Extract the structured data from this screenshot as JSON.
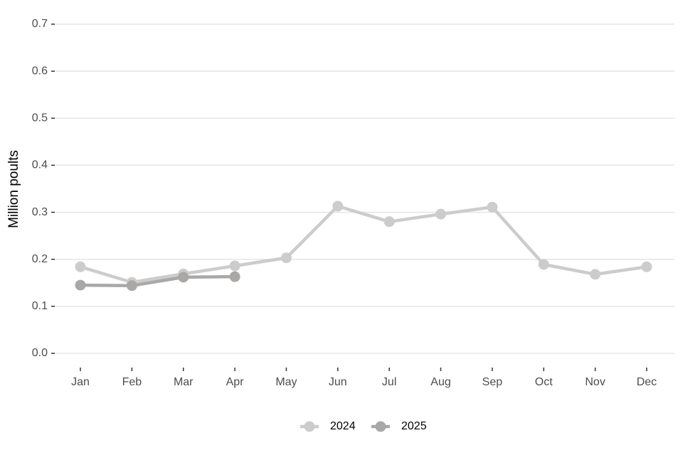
{
  "chart_data": {
    "type": "line",
    "ylabel": "Million poults",
    "categories": [
      "Jan",
      "Feb",
      "Mar",
      "Apr",
      "May",
      "Jun",
      "Jul",
      "Aug",
      "Sep",
      "Oct",
      "Nov",
      "Dec"
    ],
    "series": [
      {
        "name": "2024",
        "color": "#cccccc",
        "values": [
          0.184,
          0.151,
          0.169,
          0.186,
          0.203,
          0.313,
          0.28,
          0.296,
          0.311,
          0.189,
          0.168,
          0.184
        ]
      },
      {
        "name": "2025",
        "color": "#aaa7a7",
        "values": [
          0.145,
          0.144,
          0.162,
          0.163,
          null,
          null,
          null,
          null,
          null,
          null,
          null,
          null
        ]
      }
    ],
    "ylim": [
      0,
      0.7
    ],
    "yticks": [
      {
        "value": 0,
        "label": "0.0"
      },
      0.1,
      0.2,
      0.3,
      0.4,
      0.5,
      0.6,
      0.7
    ],
    "grid": true,
    "legend": "bottom"
  }
}
